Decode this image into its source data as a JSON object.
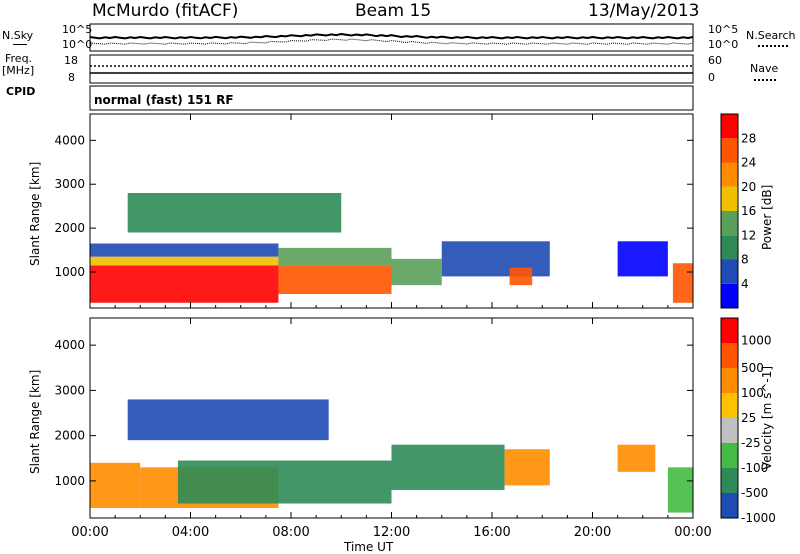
{
  "header": {
    "station": "McMurdo (fitACF)",
    "beam": "Beam 15",
    "date": "13/May/2013"
  },
  "status_panels": {
    "nsky_label": "N.Sky",
    "nsky_ticks": [
      "10^5",
      "10^0"
    ],
    "nsearch_label": "N.Search",
    "nsearch_ticks": [
      "10^5",
      "10^0"
    ],
    "freq_label_line1": "Freq.",
    "freq_label_line2": "[MHz]",
    "freq_ticks": [
      "18",
      "8"
    ],
    "nave_label": "Nave",
    "nave_ticks": [
      "60",
      "0"
    ],
    "cpid_label": "CPID",
    "cpid_text": "normal (fast) 151 RF"
  },
  "x_axis": {
    "ticks": [
      "00:00",
      "04:00",
      "08:00",
      "12:00",
      "16:00",
      "20:00",
      "00:00"
    ],
    "label": "Time UT"
  },
  "chart_data": [
    {
      "type": "heatmap",
      "title": "Power",
      "ylabel": "Slant Range [km]",
      "yticks": [
        1000,
        2000,
        3000,
        4000
      ],
      "ylim": [
        180,
        4600
      ],
      "xlim_hours": [
        0,
        24
      ],
      "colorbar_label": "Power [dB]",
      "colorbar_ticks": [
        "4",
        "8",
        "12",
        "16",
        "20",
        "24",
        "28"
      ],
      "colorbar_colors": [
        "#0000ff",
        "#1e4bb4",
        "#2e8b57",
        "#5aa05a",
        "#f0c000",
        "#ff8c00",
        "#ff5500",
        "#ff0000"
      ],
      "regions": [
        {
          "x0": 0.0,
          "x1": 7.5,
          "y0": 300,
          "y1": 1150,
          "level": 7
        },
        {
          "x0": 0.0,
          "x1": 7.5,
          "y0": 1150,
          "y1": 1350,
          "level": 4
        },
        {
          "x0": 0.0,
          "x1": 7.5,
          "y0": 1350,
          "y1": 1650,
          "level": 1
        },
        {
          "x0": 7.5,
          "x1": 12.0,
          "y0": 500,
          "y1": 1150,
          "level": 6
        },
        {
          "x0": 7.5,
          "x1": 12.0,
          "y0": 1150,
          "y1": 1550,
          "level": 3
        },
        {
          "x0": 12.0,
          "x1": 14.0,
          "y0": 700,
          "y1": 1300,
          "level": 3
        },
        {
          "x0": 14.0,
          "x1": 18.3,
          "y0": 900,
          "y1": 1700,
          "level": 1
        },
        {
          "x0": 16.7,
          "x1": 17.6,
          "y0": 700,
          "y1": 1100,
          "level": 6
        },
        {
          "x0": 21.0,
          "x1": 23.0,
          "y0": 900,
          "y1": 1700,
          "level": 0
        },
        {
          "x0": 23.2,
          "x1": 24.0,
          "y0": 300,
          "y1": 1200,
          "level": 6
        },
        {
          "x0": 1.5,
          "x1": 10.0,
          "y0": 1900,
          "y1": 2800,
          "level": 2
        }
      ]
    },
    {
      "type": "heatmap",
      "title": "Velocity",
      "ylabel": "Slant Range [km]",
      "yticks": [
        1000,
        2000,
        3000,
        4000
      ],
      "ylim": [
        180,
        4600
      ],
      "xlim_hours": [
        0,
        24
      ],
      "colorbar_label": "Velocity [m s^-1]",
      "colorbar_ticks": [
        "1000",
        "500",
        "100",
        "25",
        "-25",
        "-100",
        "-500",
        "-1000"
      ],
      "colorbar_colors": [
        "#1e4bb4",
        "#2e8b57",
        "#44bb44",
        "#c0c0c0",
        "#ffc000",
        "#ff8c00",
        "#ff5500",
        "#ff0000"
      ],
      "regions": [
        {
          "x0": 0.0,
          "x1": 2.0,
          "y0": 400,
          "y1": 1400,
          "level": 5
        },
        {
          "x0": 2.0,
          "x1": 7.5,
          "y0": 400,
          "y1": 1300,
          "level": 5
        },
        {
          "x0": 3.5,
          "x1": 12.0,
          "y0": 500,
          "y1": 1450,
          "level": 1
        },
        {
          "x0": 12.0,
          "x1": 16.5,
          "y0": 800,
          "y1": 1800,
          "level": 1
        },
        {
          "x0": 16.5,
          "x1": 18.3,
          "y0": 900,
          "y1": 1700,
          "level": 5
        },
        {
          "x0": 21.0,
          "x1": 22.5,
          "y0": 1200,
          "y1": 1800,
          "level": 5
        },
        {
          "x0": 23.0,
          "x1": 24.0,
          "y0": 300,
          "y1": 1300,
          "level": 2
        },
        {
          "x0": 1.5,
          "x1": 9.5,
          "y0": 1900,
          "y1": 2800,
          "level": 0
        }
      ]
    }
  ]
}
